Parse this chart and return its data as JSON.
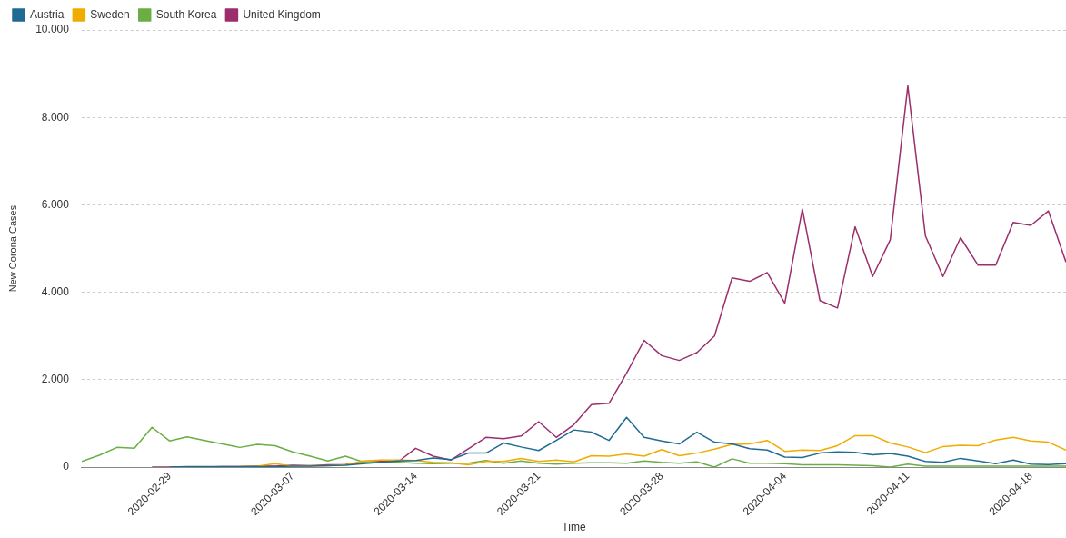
{
  "chart_data": {
    "type": "line",
    "xlabel": "Time",
    "ylabel": "New Corona Cases",
    "legend": "top left",
    "grid": "y",
    "marker": "none",
    "line_style": "solid",
    "x": [
      "2020-02-24",
      "2020-02-25",
      "2020-02-26",
      "2020-02-27",
      "2020-02-28",
      "2020-02-29",
      "2020-03-01",
      "2020-03-02",
      "2020-03-03",
      "2020-03-04",
      "2020-03-05",
      "2020-03-06",
      "2020-03-07",
      "2020-03-08",
      "2020-03-09",
      "2020-03-10",
      "2020-03-11",
      "2020-03-12",
      "2020-03-13",
      "2020-03-14",
      "2020-03-15",
      "2020-03-16",
      "2020-03-17",
      "2020-03-18",
      "2020-03-19",
      "2020-03-20",
      "2020-03-21",
      "2020-03-22",
      "2020-03-23",
      "2020-03-24",
      "2020-03-25",
      "2020-03-26",
      "2020-03-27",
      "2020-03-28",
      "2020-03-29",
      "2020-03-30",
      "2020-03-31",
      "2020-04-01",
      "2020-04-02",
      "2020-04-03",
      "2020-04-04",
      "2020-04-05",
      "2020-04-06",
      "2020-04-07",
      "2020-04-08",
      "2020-04-09",
      "2020-04-10",
      "2020-04-11",
      "2020-04-12",
      "2020-04-13",
      "2020-04-14",
      "2020-04-15",
      "2020-04-16",
      "2020-04-17",
      "2020-04-18",
      "2020-04-19",
      "2020-04-20"
    ],
    "xlim": [
      "2020-02-24",
      "2020-04-20"
    ],
    "xticks": [
      "2020-02-29",
      "2020-03-07",
      "2020-03-14",
      "2020-03-21",
      "2020-03-28",
      "2020-04-04",
      "2020-04-11",
      "2020-04-18"
    ],
    "ylim": [
      0,
      10000
    ],
    "yticks": [
      0,
      {
        "value": 2000,
        "label": "2.000"
      },
      {
        "value": 4000,
        "label": "4.000"
      },
      {
        "value": 6000,
        "label": "6.000"
      },
      {
        "value": 8000,
        "label": "8.000"
      },
      {
        "value": 10000,
        "label": "10.000"
      }
    ],
    "series": [
      {
        "name": "Austria",
        "color": "#1f6b94",
        "values": [
          null,
          null,
          null,
          null,
          null,
          0,
          10,
          10,
          10,
          10,
          10,
          10,
          20,
          20,
          30,
          40,
          80,
          110,
          140,
          150,
          210,
          170,
          320,
          320,
          550,
          460,
          380,
          610,
          850,
          800,
          610,
          1140,
          680,
          600,
          530,
          800,
          570,
          530,
          420,
          390,
          230,
          220,
          320,
          350,
          340,
          280,
          310,
          250,
          130,
          110,
          200,
          140,
          80,
          160,
          70,
          60,
          80
        ]
      },
      {
        "name": "Sweden",
        "color": "#f0ac00",
        "values": [
          null,
          null,
          null,
          null,
          null,
          null,
          null,
          null,
          null,
          10,
          20,
          80,
          20,
          30,
          30,
          50,
          140,
          160,
          160,
          150,
          110,
          100,
          50,
          130,
          130,
          200,
          130,
          160,
          120,
          260,
          250,
          300,
          250,
          400,
          260,
          320,
          410,
          520,
          530,
          610,
          360,
          390,
          380,
          490,
          720,
          720,
          550,
          460,
          330,
          470,
          500,
          490,
          620,
          680,
          600,
          570,
          390
        ]
      },
      {
        "name": "South Korea",
        "color": "#6aae45",
        "values": [
          130,
          270,
          450,
          430,
          910,
          600,
          690,
          610,
          530,
          450,
          520,
          490,
          350,
          250,
          140,
          250,
          120,
          110,
          110,
          90,
          80,
          90,
          90,
          150,
          90,
          140,
          90,
          70,
          90,
          100,
          100,
          90,
          140,
          110,
          90,
          120,
          0,
          190,
          90,
          90,
          80,
          50,
          50,
          50,
          40,
          30,
          0,
          70,
          20,
          20,
          20,
          20,
          20,
          20,
          20,
          20,
          20
        ]
      },
      {
        "name": "United Kingdom",
        "color": "#9b2f6d",
        "values": [
          null,
          null,
          null,
          null,
          0,
          0,
          0,
          0,
          10,
          10,
          20,
          20,
          40,
          30,
          50,
          60,
          110,
          130,
          120,
          430,
          250,
          160,
          420,
          680,
          650,
          710,
          1040,
          680,
          970,
          1430,
          1460,
          2150,
          2900,
          2550,
          2440,
          2620,
          3000,
          4330,
          4250,
          4450,
          3750,
          5900,
          3810,
          3640,
          5500,
          4360,
          5200,
          8720,
          5290,
          4360,
          5250,
          4620,
          4620,
          5600,
          5530,
          5860,
          4690
        ]
      }
    ]
  }
}
